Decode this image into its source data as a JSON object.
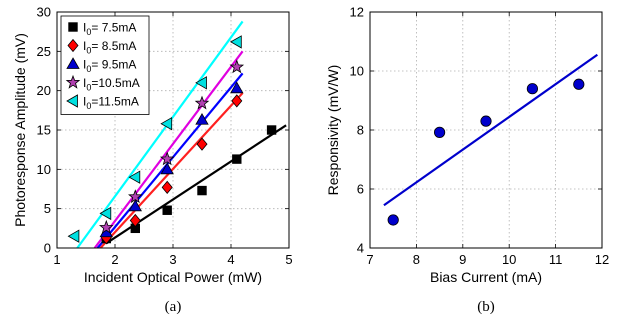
{
  "chart_data": [
    {
      "type": "scatter",
      "caption": "(a)",
      "xlabel": "Incident Optical Power (mW)",
      "ylabel": "Photoresponse Amplitude (mV)",
      "xlim": [
        1,
        5
      ],
      "ylim": [
        0,
        30
      ],
      "xticks": [
        "1",
        "2",
        "3",
        "4",
        "5"
      ],
      "yticks": [
        "0",
        "5",
        "10",
        "15",
        "20",
        "25",
        "30"
      ],
      "grid": true,
      "legend_position": "top-left",
      "series": [
        {
          "name_prefix": "I",
          "name_sub": "0",
          "name_suffix": "= 7.5mA",
          "marker": "square",
          "color": "#000000",
          "line_color": "#000000",
          "points": [
            [
              1.85,
              1.2
            ],
            [
              2.35,
              2.5
            ],
            [
              2.9,
              4.8
            ],
            [
              3.5,
              7.3
            ],
            [
              4.1,
              11.3
            ],
            [
              4.7,
              15.0
            ]
          ],
          "fit": [
            [
              1.85,
              0.6
            ],
            [
              4.95,
              15.6
            ]
          ]
        },
        {
          "name_prefix": "I",
          "name_sub": "0",
          "name_suffix": "= 8.5mA",
          "marker": "diamond",
          "color": "#ff0000",
          "line_color": "#ff2020",
          "points": [
            [
              1.85,
              1.3
            ],
            [
              2.35,
              3.5
            ],
            [
              2.9,
              7.7
            ],
            [
              3.5,
              13.2
            ],
            [
              4.1,
              18.7
            ]
          ],
          "fit": [
            [
              1.75,
              0.0
            ],
            [
              4.2,
              19.7
            ]
          ]
        },
        {
          "name_prefix": "I",
          "name_sub": "0",
          "name_suffix": "= 9.5mA",
          "marker": "triangle",
          "color": "#0000cc",
          "line_color": "#0000ff",
          "points": [
            [
              1.85,
              2.0
            ],
            [
              2.35,
              5.3
            ],
            [
              2.9,
              10.0
            ],
            [
              3.5,
              16.3
            ],
            [
              4.1,
              20.3
            ]
          ],
          "fit": [
            [
              1.7,
              0.0
            ],
            [
              4.2,
              22.2
            ]
          ]
        },
        {
          "name_prefix": "I",
          "name_sub": "0",
          "name_suffix": "=10.5mA",
          "marker": "star",
          "color": "#b040b0",
          "line_color": "#e000e0",
          "points": [
            [
              1.85,
              2.6
            ],
            [
              2.35,
              6.5
            ],
            [
              2.9,
              11.3
            ],
            [
              3.5,
              18.4
            ],
            [
              4.1,
              23.0
            ]
          ],
          "fit": [
            [
              1.65,
              0.0
            ],
            [
              4.2,
              25.0
            ]
          ]
        },
        {
          "name_prefix": "I",
          "name_sub": "0",
          "name_suffix": "=11.5mA",
          "marker": "triangle-left",
          "color": "#00e0e0",
          "line_color": "#00ffff",
          "points": [
            [
              1.3,
              1.5
            ],
            [
              1.85,
              4.4
            ],
            [
              2.35,
              9.0
            ],
            [
              2.9,
              15.8
            ],
            [
              3.5,
              21.0
            ],
            [
              4.1,
              26.2
            ]
          ],
          "fit": [
            [
              1.35,
              0.0
            ],
            [
              4.2,
              28.8
            ]
          ]
        }
      ]
    },
    {
      "type": "scatter",
      "caption": "(b)",
      "xlabel": "Bias Current (mA)",
      "ylabel": "Responsivity (mV/W)",
      "xlim": [
        7,
        12
      ],
      "ylim": [
        4,
        12
      ],
      "xticks": [
        "7",
        "8",
        "9",
        "10",
        "11",
        "12"
      ],
      "yticks": [
        "4",
        "6",
        "8",
        "10",
        "12"
      ],
      "grid": true,
      "series": [
        {
          "marker": "circle",
          "color": "#0000cc",
          "points": [
            [
              7.5,
              4.95
            ],
            [
              8.5,
              7.92
            ],
            [
              9.5,
              8.3
            ],
            [
              10.5,
              9.4
            ],
            [
              11.5,
              9.55
            ]
          ],
          "fit": [
            [
              7.3,
              5.45
            ],
            [
              11.9,
              10.55
            ]
          ]
        }
      ]
    }
  ]
}
